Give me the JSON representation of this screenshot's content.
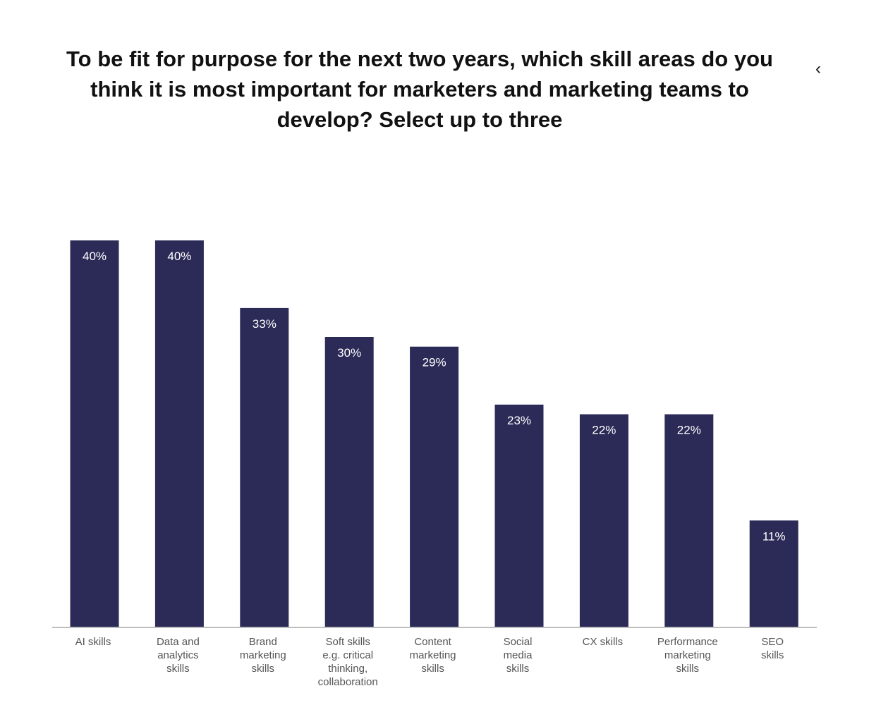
{
  "chart_data": {
    "type": "bar",
    "title": "To be fit for purpose for the next two years, which skill areas do you think it is most important for marketers and marketing teams to develop? Select up to three",
    "categories": [
      "AI skills",
      "Data and analytics skills",
      "Brand marketing skills",
      "Soft skills e.g. critical thinking, collaboration",
      "Content marketing skills",
      "Social media skills",
      "CX skills",
      "Performance marketing skills",
      "SEO skills"
    ],
    "category_lines": [
      [
        "AI skills"
      ],
      [
        "Data and",
        "analytics",
        "skills"
      ],
      [
        "Brand",
        "marketing",
        "skills"
      ],
      [
        "Soft skills",
        "e.g. critical",
        "thinking,",
        "collaboration"
      ],
      [
        "Content",
        "marketing",
        "skills"
      ],
      [
        "Social",
        "media",
        "skills"
      ],
      [
        "CX skills"
      ],
      [
        "Performance",
        "marketing",
        "skills"
      ],
      [
        "SEO",
        "skills"
      ]
    ],
    "values": [
      40,
      40,
      33,
      30,
      29,
      23,
      22,
      22,
      11
    ],
    "data_labels": [
      "40%",
      "40%",
      "33%",
      "30%",
      "29%",
      "23%",
      "22%",
      "22%",
      "11%"
    ],
    "xlabel": "",
    "ylabel": "",
    "ylim": [
      0,
      40
    ],
    "grid": false,
    "bar_color": "#2c2b58"
  },
  "nav": {
    "icon": "chevron-left-icon",
    "glyph": "‹"
  }
}
